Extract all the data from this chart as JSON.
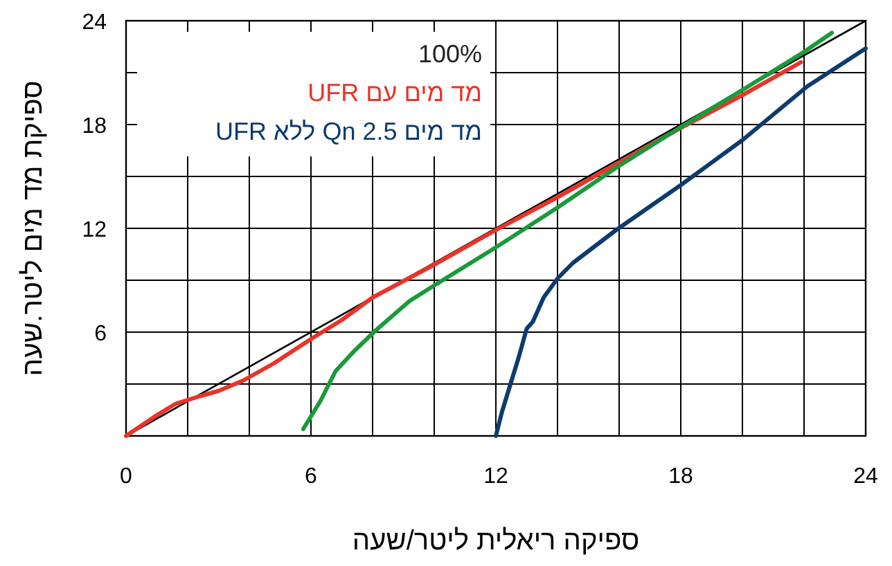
{
  "chart_data": {
    "type": "line",
    "xlabel": "ספיקה ריאלית ליטר/שעה",
    "ylabel": "ספיקת מד מים ליטר.שעה",
    "xlim": [
      0,
      24
    ],
    "ylim": [
      0,
      24
    ],
    "xticks": [
      0,
      {
        "value": 2,
        "label": null
      },
      {
        "value": 4,
        "label": null
      },
      6,
      {
        "value": 8,
        "label": null
      },
      {
        "value": 10,
        "label": null
      },
      12,
      {
        "value": 14,
        "label": null
      },
      {
        "value": 16,
        "label": null
      },
      18,
      {
        "value": 20,
        "label": null
      },
      {
        "value": 22,
        "label": null
      },
      24
    ],
    "yticks": [
      {
        "value": 0,
        "label": null
      },
      {
        "value": 3,
        "label": null
      },
      6,
      {
        "value": 9,
        "label": null
      },
      12,
      {
        "value": 15,
        "label": null
      },
      18,
      {
        "value": 21,
        "label": null
      },
      24
    ],
    "grid": true,
    "legend": "top left",
    "marker": "none",
    "line_style": "solid",
    "series": [
      {
        "name": "100%",
        "color": "#000000",
        "x": [
          0,
          24
        ],
        "values": [
          0,
          24
        ]
      },
      {
        "name": "מד מים עם UFR",
        "color": "#e8342a",
        "x": [
          0,
          1,
          1.6,
          2.4,
          3,
          3.8,
          4.8,
          6,
          7,
          8,
          10,
          12,
          14,
          16,
          18,
          20,
          21.9
        ],
        "values": [
          0,
          1.2,
          1.85,
          2.3,
          2.6,
          3.2,
          4.2,
          5.6,
          6.7,
          8,
          9.9,
          11.9,
          13.8,
          15.8,
          17.8,
          19.7,
          21.6
        ]
      },
      {
        "color": "#1a9a3a",
        "x": [
          5.75,
          6.3,
          6.8,
          7.4,
          8.1,
          9.2,
          10,
          12,
          14,
          15.9,
          18,
          20,
          22,
          22.9
        ],
        "values": [
          0.4,
          2,
          3.75,
          4.9,
          6.1,
          7.8,
          8.7,
          10.9,
          13.2,
          15.5,
          17.85,
          20,
          22.2,
          23.3
        ]
      },
      {
        "name": "מד מים Qn 2.5 ללא UFR",
        "color": "#0d3b6e",
        "x": [
          12,
          12.2,
          12.75,
          13,
          13.2,
          13.55,
          14,
          14.5,
          15.9,
          18,
          20,
          22.1,
          24
        ],
        "values": [
          0,
          1.4,
          4.6,
          6.2,
          6.6,
          8,
          9.1,
          10,
          11.9,
          14.5,
          17.1,
          20.2,
          22.4
        ]
      }
    ]
  }
}
